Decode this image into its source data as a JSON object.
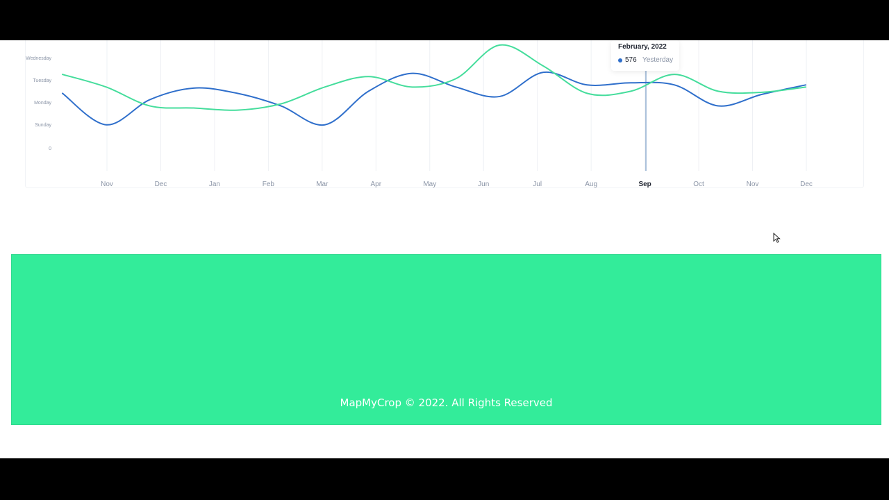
{
  "colors": {
    "series_blue": "#2f6fcb",
    "series_green": "#45dd9c",
    "footer_bg": "#33ec9a",
    "grid": "#eef0f4",
    "axis_text": "#8a94a6",
    "cursor_line": "#5b86b8"
  },
  "chart": {
    "tooltip": {
      "title": "February, 2022",
      "value": "576",
      "label": "Yesterday"
    }
  },
  "chart_data": {
    "type": "line",
    "title": "",
    "xlabel": "",
    "ylabel": "",
    "x": [
      "Nov",
      "Dec",
      "Jan",
      "Feb",
      "Mar",
      "Apr",
      "May",
      "Jun",
      "Jul",
      "Aug",
      "Sep",
      "Oct",
      "Nov",
      "Dec"
    ],
    "x_highlight": "Sep",
    "y_ticks": [
      "0",
      "Sunday",
      "Monday",
      "Tuesday",
      "Wednesday"
    ],
    "ylim": [
      0,
      4.3
    ],
    "grid": "vertical",
    "series": [
      {
        "color": "#2f6fcb",
        "points": [
          [
            0,
            2.6
          ],
          [
            1,
            1.1
          ],
          [
            2,
            2.3
          ],
          [
            3,
            2.85
          ],
          [
            4,
            2.6
          ],
          [
            5,
            2.0
          ],
          [
            6,
            1.1
          ],
          [
            7,
            2.7
          ],
          [
            8,
            3.55
          ],
          [
            9,
            2.9
          ],
          [
            10,
            2.45
          ],
          [
            11,
            3.6
          ],
          [
            12,
            3.0
          ],
          [
            13,
            3.1
          ],
          [
            14,
            3.0
          ],
          [
            15,
            2.0
          ],
          [
            16,
            2.55
          ],
          [
            17,
            3.0
          ]
        ],
        "x_units": "month_index_from_Nov_start"
      },
      {
        "color": "#45dd9c",
        "points": [
          [
            0,
            3.5
          ],
          [
            1,
            2.9
          ],
          [
            2,
            2.0
          ],
          [
            3,
            1.9
          ],
          [
            4,
            1.8
          ],
          [
            5,
            2.1
          ],
          [
            6,
            2.9
          ],
          [
            7,
            3.4
          ],
          [
            8,
            2.9
          ],
          [
            9,
            3.3
          ],
          [
            10,
            4.9
          ],
          [
            11,
            3.9
          ],
          [
            12,
            2.6
          ],
          [
            13,
            2.7
          ],
          [
            14,
            3.5
          ],
          [
            15,
            2.7
          ],
          [
            16,
            2.65
          ],
          [
            17,
            2.9
          ]
        ],
        "x_units": "month_index_from_Nov_start"
      }
    ]
  },
  "footer": {
    "copyright": "MapMyCrop © 2022. All Rights Reserved"
  }
}
